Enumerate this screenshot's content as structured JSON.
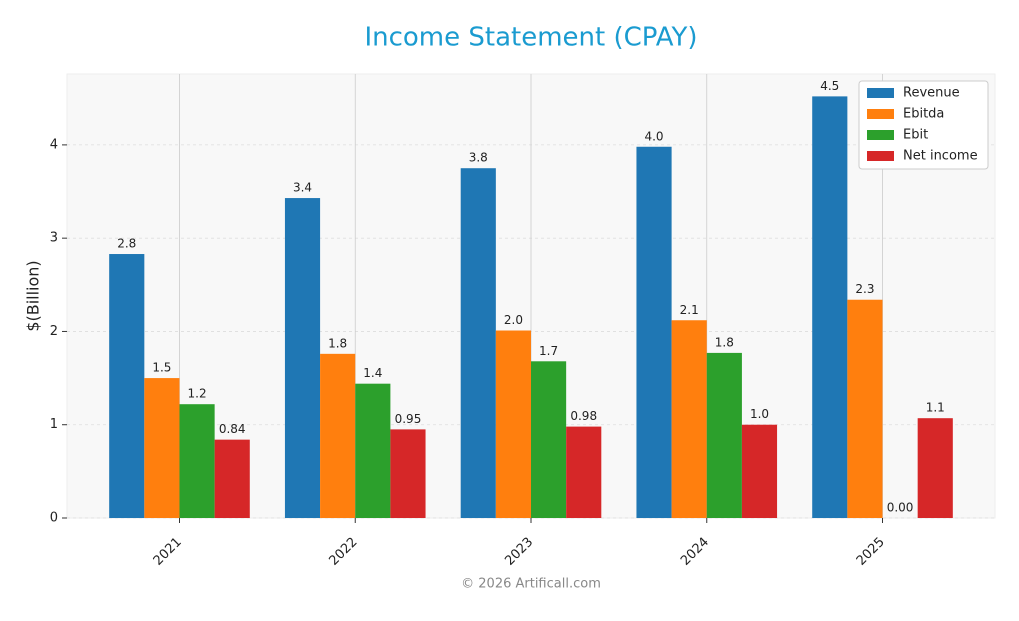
{
  "chart_data": {
    "type": "bar",
    "title": "Income Statement (CPAY)",
    "ylabel": "$(Billion)",
    "categories": [
      "2021",
      "2022",
      "2023",
      "2024",
      "2025"
    ],
    "series": [
      {
        "name": "Revenue",
        "color": "#1f77b4",
        "values": [
          2.83,
          3.43,
          3.75,
          3.98,
          4.52
        ],
        "value_labels": [
          "2.8",
          "3.4",
          "3.8",
          "4.0",
          "4.5"
        ]
      },
      {
        "name": "Ebitda",
        "color": "#ff7f0e",
        "values": [
          1.5,
          1.76,
          2.01,
          2.12,
          2.34
        ],
        "value_labels": [
          "1.5",
          "1.8",
          "2.0",
          "2.1",
          "2.3"
        ]
      },
      {
        "name": "Ebit",
        "color": "#2ca02c",
        "values": [
          1.22,
          1.44,
          1.68,
          1.77,
          0.0
        ],
        "value_labels": [
          "1.2",
          "1.4",
          "1.7",
          "1.8",
          "0.00"
        ]
      },
      {
        "name": "Net income",
        "color": "#d62728",
        "values": [
          0.84,
          0.95,
          0.98,
          1.0,
          1.07
        ],
        "value_labels": [
          "0.84",
          "0.95",
          "0.98",
          "1.0",
          "1.1"
        ]
      }
    ],
    "ylim": [
      0,
      4.76
    ],
    "yticks": [
      0,
      1,
      2,
      3,
      4
    ],
    "grid": true,
    "legend": "upper right",
    "footer": "© 2026 Artificall.com"
  }
}
